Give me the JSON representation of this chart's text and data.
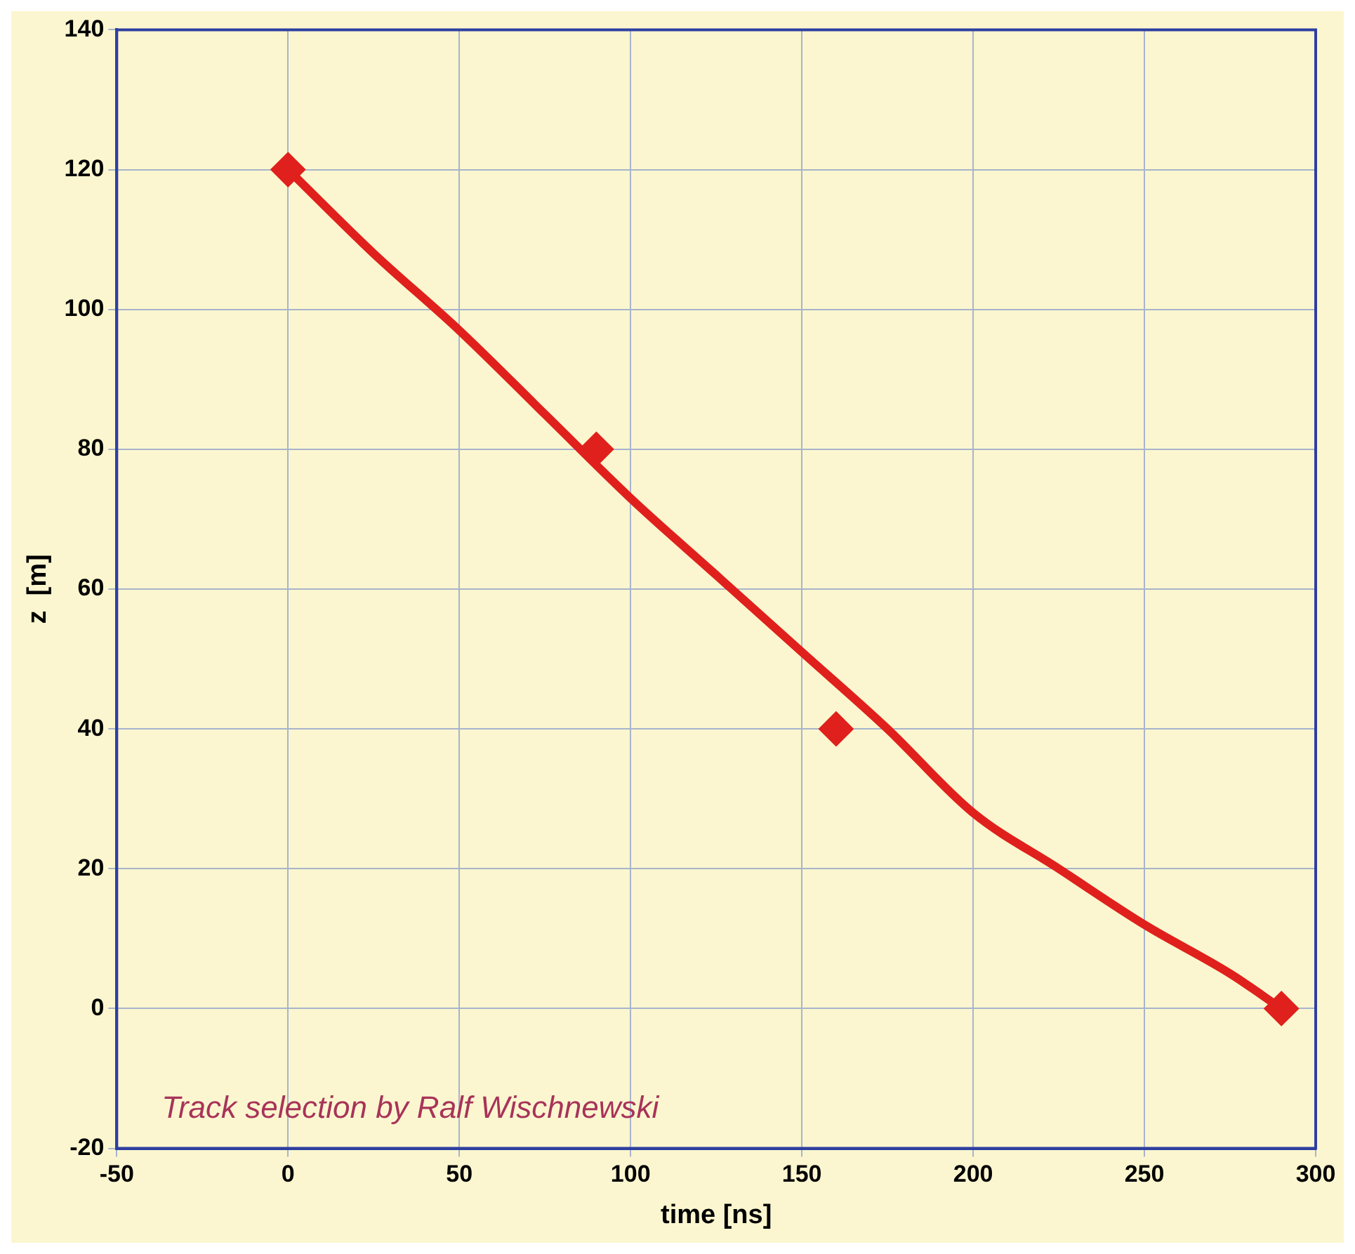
{
  "chart_data": {
    "type": "scatter",
    "xlabel": "time [ns]",
    "ylabel": "z  [m]",
    "xlim": [
      -50,
      300
    ],
    "xticks": [
      -50,
      0,
      50,
      100,
      150,
      200,
      250,
      300
    ],
    "ylim": [
      -20,
      140
    ],
    "yticks": [
      -20,
      0,
      20,
      40,
      60,
      80,
      100,
      120,
      140
    ],
    "grid": true,
    "legend": false,
    "series": [
      {
        "type": "scatter",
        "color": "#e0201c",
        "marker": "diamond",
        "x": [
          0,
          90,
          160,
          290
        ],
        "values": [
          120,
          80,
          40,
          0
        ]
      },
      {
        "type": "line",
        "color": "#e0201c",
        "marker": "none",
        "line_style": "solid",
        "x": [
          0,
          25,
          50,
          75,
          100,
          125,
          150,
          175,
          200,
          225,
          250,
          275,
          290
        ],
        "values": [
          120,
          108,
          97,
          85,
          73,
          62,
          51,
          40,
          28,
          20,
          12,
          5,
          0
        ]
      }
    ],
    "annotations": [
      "Track selection by Ralf Wischnewski"
    ]
  }
}
